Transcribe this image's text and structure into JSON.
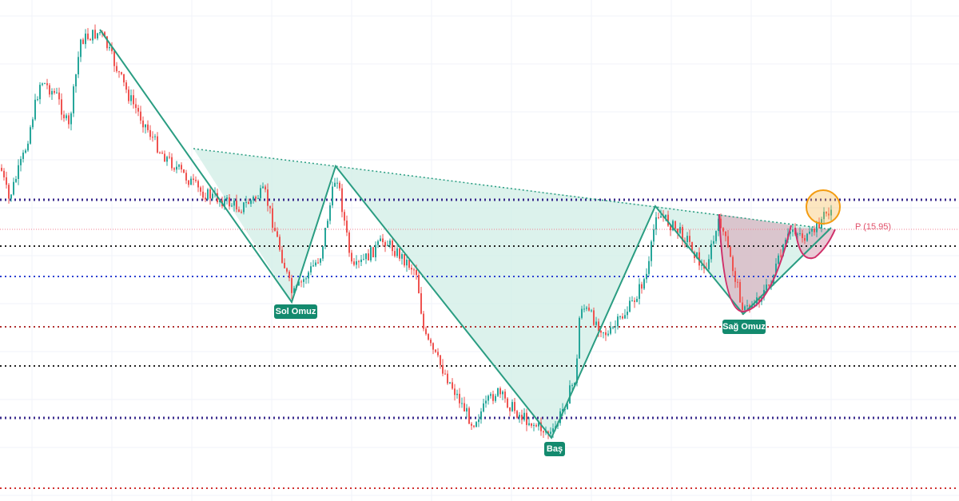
{
  "annotations": [
    "Sol Omuz",
    "Baş",
    "Sağ Omuz"
  ],
  "price_label": "P (15.95)"
}
